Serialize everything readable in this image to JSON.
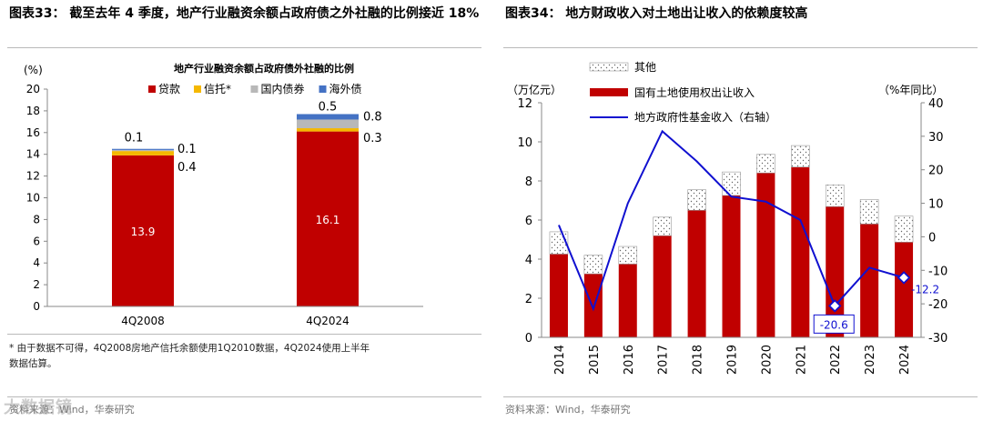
{
  "left": {
    "title": "图表33： 截至去年 4 季度，地产行业融资余额占政府债之外社融的比例接近 18%",
    "footnote_line1": "* 由于数据不可得，4Q2008房地产信托余额使用1Q2010数据，4Q2024使用上半年",
    "footnote_line2": "数据估算。",
    "source": "资料来源：Wind，华泰研究",
    "watermark": "大数据镜"
  },
  "right": {
    "title": "图表34： 地方财政收入对土地出让收入的依赖度较高",
    "source": "资料来源：Wind，华泰研究"
  },
  "chart_data": [
    {
      "type": "bar",
      "stacked": true,
      "title": "地产行业融资余额占政府债外社融的比例",
      "ylabel": "(%)",
      "ylim": [
        0,
        20
      ],
      "yticks": [
        0,
        2,
        4,
        6,
        8,
        10,
        12,
        14,
        16,
        18,
        20
      ],
      "categories": [
        "4Q2008",
        "4Q2024"
      ],
      "series": [
        {
          "name": "贷款",
          "color": "#c00000",
          "values": [
            13.9,
            16.1
          ],
          "labels": [
            "13.9",
            "16.1"
          ]
        },
        {
          "name": "信托*",
          "color": "#f5b800",
          "values": [
            0.4,
            0.3
          ],
          "labels": [
            "0.4",
            "0.3"
          ]
        },
        {
          "name": "国内债券",
          "color": "#b8b8b8",
          "values": [
            0.1,
            0.8
          ],
          "labels": [
            "0.1",
            "0.8"
          ]
        },
        {
          "name": "海外债",
          "color": "#4472c4",
          "values": [
            0.1,
            0.5
          ],
          "labels": [
            "0.1",
            "0.5"
          ]
        }
      ],
      "legend": "top"
    },
    {
      "type": "bar",
      "stacked": true,
      "ylabel_left": "（万亿元）",
      "ylabel_right": "（%年同比）",
      "ylim_left": [
        0,
        12
      ],
      "yticks_left": [
        0,
        2,
        4,
        6,
        8,
        10,
        12
      ],
      "ylim_right": [
        -30,
        40
      ],
      "yticks_right": [
        -30,
        -20,
        -10,
        0,
        10,
        20,
        30,
        40
      ],
      "categories": [
        "2014",
        "2015",
        "2016",
        "2017",
        "2018",
        "2019",
        "2020",
        "2021",
        "2022",
        "2023",
        "2024"
      ],
      "series": [
        {
          "name": "国有土地使用权出让收入",
          "color": "#c00000",
          "axis": "left",
          "values": [
            4.26,
            3.25,
            3.75,
            5.2,
            6.5,
            7.26,
            8.41,
            8.71,
            6.69,
            5.8,
            4.87
          ]
        },
        {
          "name": "其他",
          "color": "#ffffff",
          "pattern": "dots",
          "axis": "left",
          "values": [
            1.14,
            0.95,
            0.9,
            0.95,
            1.05,
            1.2,
            0.95,
            1.1,
            1.11,
            1.25,
            1.33
          ]
        },
        {
          "name": "地方政府性基金收入（右轴）",
          "type": "line",
          "color": "#1010d0",
          "axis": "right",
          "values": [
            3.5,
            -21.5,
            10.0,
            31.5,
            22.5,
            12.0,
            10.5,
            5.0,
            -20.6,
            -9.2,
            -12.2
          ]
        }
      ],
      "annotations": [
        {
          "category": "2022",
          "text": "-20.6"
        },
        {
          "category": "2024",
          "text": "-12.2"
        }
      ],
      "legend": "top-left"
    }
  ]
}
